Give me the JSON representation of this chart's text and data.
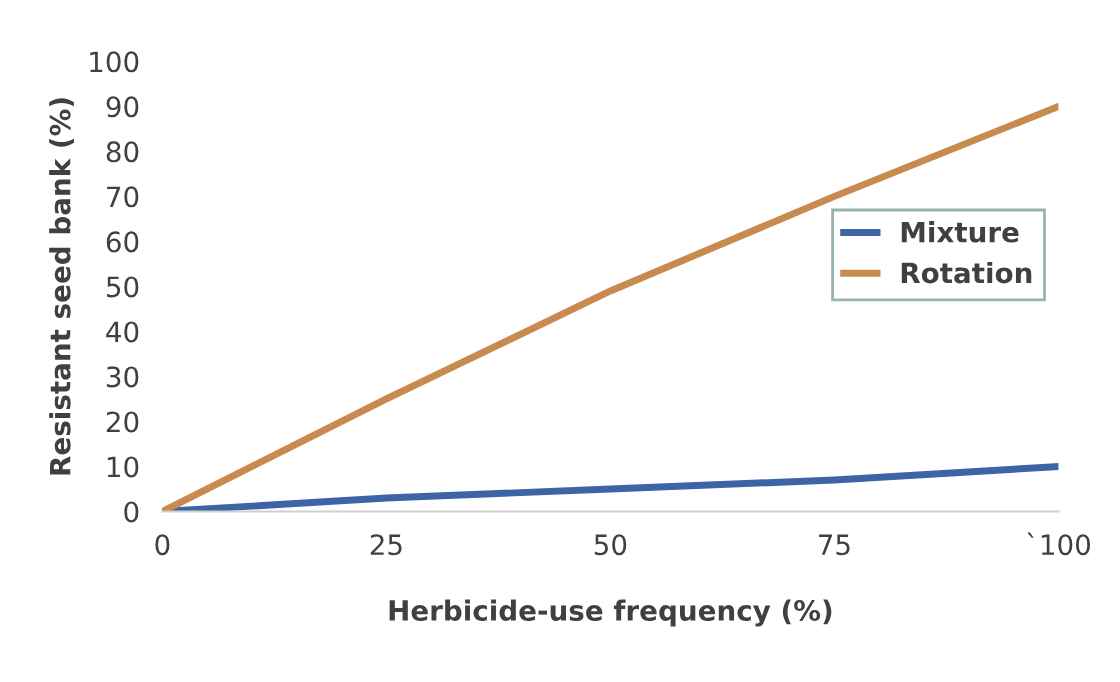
{
  "chart_data": {
    "type": "line",
    "xlabel": "Herbicide-use frequency (%)",
    "ylabel": "Resistant seed bank (%)",
    "x": [
      0,
      25,
      50,
      75,
      100
    ],
    "series": [
      {
        "name": "Mixture",
        "color": "#3d65a6",
        "values": [
          0,
          3,
          5,
          7,
          10
        ]
      },
      {
        "name": "Rotation",
        "color": "#c98a50",
        "values": [
          0,
          25,
          49,
          70,
          90
        ]
      }
    ],
    "xlim": [
      0,
      100
    ],
    "xticks": [
      0,
      25,
      50,
      75,
      {
        "value": 100,
        "label": "`100"
      }
    ],
    "ylim": [
      0,
      100
    ],
    "yticks": [
      0,
      10,
      20,
      30,
      40,
      50,
      60,
      70,
      80,
      90,
      100
    ],
    "grid": false,
    "legend": "right",
    "marker": "none",
    "line_style": "solid"
  }
}
